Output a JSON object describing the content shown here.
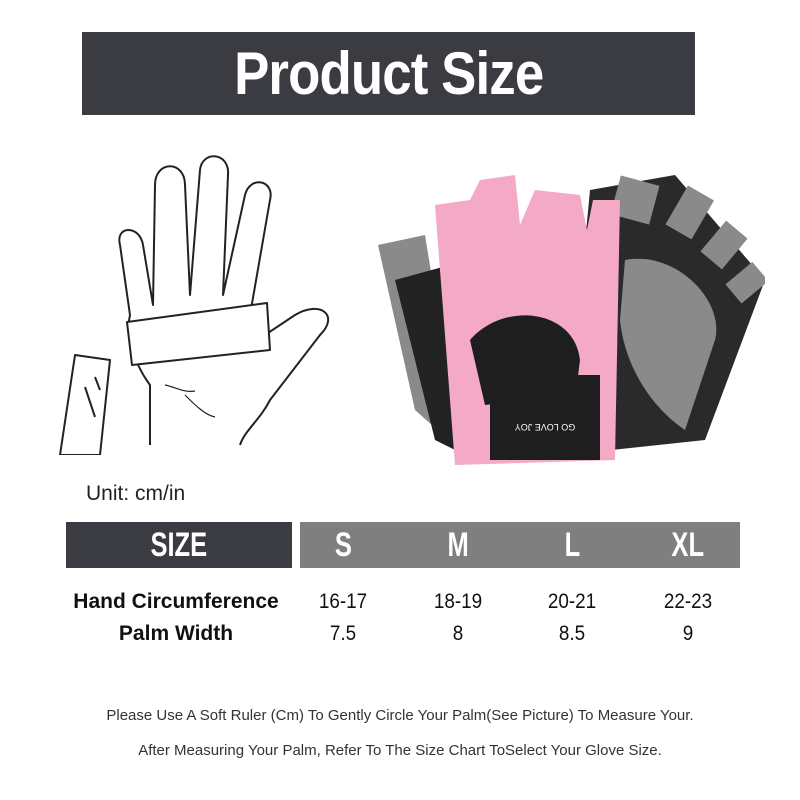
{
  "title": "Product Size",
  "unit_label": "Unit: cm/in",
  "product_logo": "GO LOVE JOY",
  "colors": {
    "header_dark": "#3b3c41",
    "header_gray": "#7f7f7f",
    "glove_pink": "#f4a9c6",
    "glove_gray": "#8a8a8a"
  },
  "size_table": {
    "header_label": "SIZE",
    "sizes": [
      "S",
      "M",
      "L",
      "XL"
    ],
    "rows": [
      {
        "label": "Hand Circumference",
        "values": [
          "16-17",
          "18-19",
          "20-21",
          "22-23"
        ]
      },
      {
        "label": "Palm Width",
        "values": [
          "7.5",
          "8",
          "8.5",
          "9"
        ]
      }
    ]
  },
  "instructions": [
    "Please Use A Soft Ruler (Cm) To Gently Circle Your Palm(See Picture) To Measure Your.",
    "After Measuring Your Palm, Refer To The Size Chart ToSelect Your Glove Size."
  ]
}
